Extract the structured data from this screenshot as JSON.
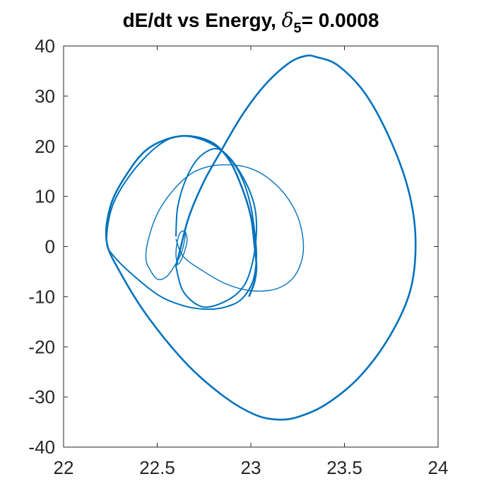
{
  "chart_data": {
    "type": "line",
    "title": {
      "prefix": "dE/dt vs Energy, ",
      "symbol": "δ",
      "subscript": "5",
      "suffix": "= 0.0008"
    },
    "xlabel": "",
    "ylabel": "",
    "xlim": [
      22,
      24
    ],
    "ylim": [
      -40,
      40
    ],
    "x_ticks": [
      22,
      22.5,
      23,
      23.5,
      24
    ],
    "x_tick_labels": [
      "22",
      "22.5",
      "23",
      "23.5",
      "24"
    ],
    "y_ticks": [
      40,
      30,
      20,
      10,
      0,
      -10,
      -20,
      -30,
      -40
    ],
    "y_tick_labels": [
      "40",
      "30",
      "20",
      "10",
      "0",
      "-10",
      "-20",
      "-30",
      "-40"
    ],
    "grid": false,
    "legend": "none",
    "series_color": "#0072BD",
    "series": [
      {
        "x": [
          22.65,
          22.66,
          22.65,
          22.63,
          22.61,
          22.6,
          22.61,
          22.63,
          22.65,
          22.63,
          22.59,
          22.55,
          22.5,
          22.46,
          22.44,
          22.45,
          22.5,
          22.58,
          22.68,
          22.78,
          22.88,
          22.98,
          23.08,
          23.18,
          23.25,
          23.28,
          23.27,
          23.22,
          23.13,
          23.0,
          22.87,
          22.75,
          22.64,
          22.6
        ],
        "y": [
          3.0,
          1.5,
          -0.5,
          -2.5,
          -3.5,
          -1.5,
          1.5,
          3.0,
          2.5,
          -1.2,
          -4.0,
          -6.0,
          -6.5,
          -4.5,
          -2.5,
          1.0,
          6.5,
          11.0,
          14.5,
          16.0,
          16.3,
          15.8,
          14.0,
          10.5,
          6.0,
          1.0,
          -3.0,
          -6.5,
          -8.5,
          -8.8,
          -7.5,
          -5.0,
          -2.0,
          1.5
        ]
      },
      {
        "x": [
          22.6,
          22.61,
          22.66,
          22.73,
          22.82,
          22.9,
          22.96,
          23.0,
          23.02,
          23.03,
          23.01,
          22.95,
          22.87,
          22.78,
          22.66,
          22.52,
          22.38,
          22.27,
          22.23,
          22.26,
          22.36,
          22.5,
          22.62,
          22.76,
          22.88,
          22.97,
          23.02,
          23.03,
          23.01,
          22.96,
          22.86,
          22.74,
          22.64,
          22.6
        ],
        "y": [
          2.0,
          8.0,
          14.0,
          18.0,
          19.5,
          17.0,
          13.0,
          8.0,
          3.0,
          -2.0,
          -7.0,
          -10.5,
          -12.0,
          -12.5,
          -12.0,
          -10.0,
          -6.0,
          -2.0,
          1.0,
          8.0,
          14.5,
          20.0,
          22.0,
          21.0,
          18.0,
          13.0,
          8.0,
          3.0,
          -3.0,
          -8.0,
          -11.0,
          -12.0,
          -9.0,
          -4.0
        ]
      },
      {
        "x": [
          22.6,
          22.62,
          22.67,
          22.75,
          22.84,
          22.95,
          23.07,
          23.2,
          23.29,
          23.35,
          23.47,
          23.62,
          23.76,
          23.85,
          23.88,
          23.85,
          23.74,
          23.58,
          23.4,
          23.25,
          23.14,
          23.02,
          22.86,
          22.66,
          22.45,
          22.3,
          22.23,
          22.25,
          22.33,
          22.45,
          22.62,
          22.78,
          22.88,
          22.95,
          23.0,
          23.02,
          23.03,
          23.02,
          22.99
        ],
        "y": [
          -4.0,
          -1.0,
          6.0,
          13.0,
          19.0,
          26.0,
          32.0,
          36.5,
          38.0,
          37.8,
          36.0,
          30.0,
          20.0,
          10.0,
          0.5,
          -9.0,
          -18.0,
          -26.0,
          -31.5,
          -34.0,
          -34.5,
          -33.5,
          -30.0,
          -23.5,
          -14.0,
          -5.0,
          1.0,
          8.0,
          14.0,
          19.5,
          22.0,
          21.0,
          17.5,
          12.0,
          6.0,
          0.0,
          -4.0,
          -7.0,
          -10.0
        ]
      }
    ]
  }
}
